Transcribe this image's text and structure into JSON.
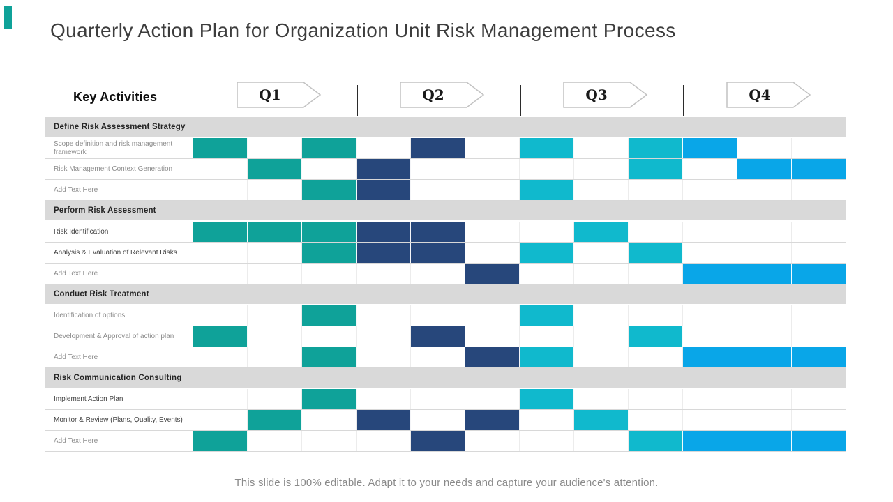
{
  "slide": {
    "title": "Quarterly Action Plan for Organization Unit Risk Management Process",
    "key_activities_label": "Key Activities",
    "footer": "This slide is 100% editable. Adapt it to your needs and capture your audience's attention.",
    "accent_color": "#0FA299"
  },
  "quarters": [
    "Q1",
    "Q2",
    "Q3",
    "Q4"
  ],
  "chart_data": {
    "type": "table",
    "subtype": "gantt-quarterly-action-plan",
    "title": "Quarterly Action Plan for Organization Unit Risk Management Process",
    "column_header_label": "Key Activities",
    "quarters": [
      "Q1",
      "Q2",
      "Q3",
      "Q4"
    ],
    "columns_total": 12,
    "columns_per_quarter": 3,
    "palette": {
      "teal": "#0FA299",
      "navy": "#27477B",
      "cyan": "#10B9CD",
      "blue": "#09A6E8",
      "section_band": "#D9D9D9"
    },
    "sections": [
      {
        "header": "Define Risk Assessment Strategy",
        "rows": [
          {
            "label": "Scope definition and risk management framework",
            "emphasis": false,
            "cells": {
              "1": "teal",
              "3": "teal",
              "5": "navy",
              "7": "cyan",
              "9": "cyan",
              "10": "blue"
            }
          },
          {
            "label": "Risk Management  Context Generation",
            "emphasis": false,
            "cells": {
              "2": "teal",
              "4": "navy",
              "9": "cyan",
              "11": "blue",
              "12": "blue"
            }
          },
          {
            "label": "Add Text Here",
            "emphasis": false,
            "cells": {
              "3": "teal",
              "4": "navy",
              "7": "cyan"
            }
          }
        ]
      },
      {
        "header": "Perform Risk Assessment",
        "rows": [
          {
            "label": "Risk Identification",
            "emphasis": true,
            "cells": {
              "1": "teal",
              "2": "teal",
              "3": "teal",
              "4": "navy",
              "5": "navy",
              "8": "cyan"
            }
          },
          {
            "label": "Analysis & Evaluation of Relevant Risks",
            "emphasis": true,
            "cells": {
              "3": "teal",
              "4": "navy",
              "5": "navy",
              "7": "cyan",
              "9": "cyan"
            }
          },
          {
            "label": "Add Text Here",
            "emphasis": false,
            "cells": {
              "6": "navy",
              "10": "blue",
              "11": "blue",
              "12": "blue"
            }
          }
        ]
      },
      {
        "header": "Conduct Risk Treatment",
        "rows": [
          {
            "label": "Identification of options",
            "emphasis": false,
            "cells": {
              "3": "teal",
              "7": "cyan"
            }
          },
          {
            "label": "Development & Approval of action plan",
            "emphasis": false,
            "cells": {
              "1": "teal",
              "5": "navy",
              "9": "cyan"
            }
          },
          {
            "label": "Add Text Here",
            "emphasis": false,
            "cells": {
              "3": "teal",
              "6": "navy",
              "7": "cyan",
              "10": "blue",
              "11": "blue",
              "12": "blue"
            }
          }
        ]
      },
      {
        "header": "Risk Communication Consulting",
        "rows": [
          {
            "label": "Implement Action Plan",
            "emphasis": true,
            "cells": {
              "3": "teal",
              "7": "cyan"
            }
          },
          {
            "label": "Monitor & Review (Plans, Quality, Events)",
            "emphasis": true,
            "cells": {
              "2": "teal",
              "4": "navy",
              "6": "navy",
              "8": "cyan"
            }
          },
          {
            "label": "Add Text Here",
            "emphasis": false,
            "cells": {
              "1": "teal",
              "5": "navy",
              "9": "cyan",
              "10": "blue",
              "11": "blue",
              "12": "blue"
            }
          }
        ]
      }
    ]
  }
}
